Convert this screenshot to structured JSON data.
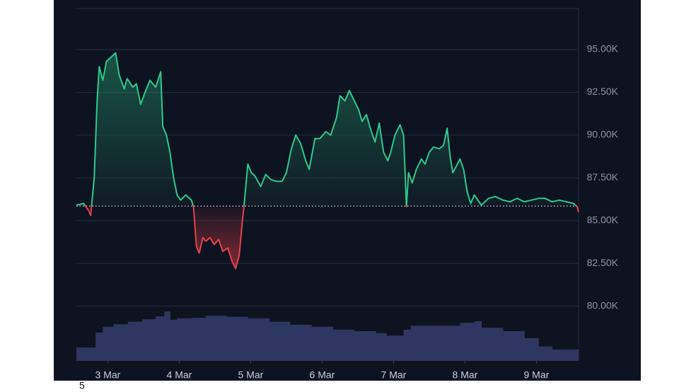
{
  "chart_data": {
    "type": "baseline-line",
    "series": [
      {
        "name": "price",
        "color": "#2ec98a",
        "below_color": "#e8414a",
        "x": [
          2.56,
          2.66,
          2.73,
          2.76,
          2.81,
          2.85,
          2.88,
          2.93,
          2.98,
          3.03,
          3.11,
          3.16,
          3.23,
          3.27,
          3.35,
          3.4,
          3.46,
          3.52,
          3.59,
          3.67,
          3.74,
          3.77,
          3.82,
          3.87,
          3.92,
          3.97,
          4.02,
          4.09,
          4.17,
          4.2,
          4.24,
          4.28,
          4.33,
          4.37,
          4.43,
          4.49,
          4.55,
          4.61,
          4.68,
          4.74,
          4.79,
          4.84,
          4.88,
          4.91,
          4.96,
          5.01,
          5.06,
          5.14,
          5.21,
          5.28,
          5.36,
          5.44,
          5.5,
          5.57,
          5.63,
          5.7,
          5.77,
          5.82,
          5.9,
          5.97,
          6.05,
          6.12,
          6.2,
          6.25,
          6.32,
          6.38,
          6.45,
          6.51,
          6.56,
          6.62,
          6.69,
          6.74,
          6.8,
          6.86,
          6.92,
          6.96,
          7.02,
          7.09,
          7.14,
          7.18,
          7.21,
          7.26,
          7.32,
          7.39,
          7.44,
          7.5,
          7.56,
          7.64,
          7.7,
          7.75,
          7.79,
          7.83,
          7.88,
          7.93,
          7.98,
          8.03,
          8.08,
          8.13,
          8.18,
          8.23,
          8.33,
          8.43,
          8.53,
          8.63,
          8.73,
          8.83,
          8.93,
          9.03,
          9.12,
          9.22,
          9.32,
          9.42,
          9.52,
          9.57,
          9.59
        ],
        "values": [
          85900,
          86000,
          85600,
          85300,
          87500,
          92000,
          94000,
          93200,
          94300,
          94500,
          94800,
          93500,
          92700,
          93300,
          92800,
          93000,
          91800,
          92500,
          93200,
          92800,
          93700,
          90500,
          90000,
          89000,
          87500,
          86500,
          86200,
          86500,
          86200,
          85800,
          83500,
          83100,
          84000,
          83800,
          84000,
          83600,
          83900,
          83200,
          83400,
          82600,
          82200,
          83000,
          84800,
          86000,
          88300,
          87800,
          87600,
          87000,
          87700,
          87400,
          87300,
          87300,
          87800,
          89200,
          90000,
          89500,
          88500,
          88000,
          89800,
          89800,
          90200,
          90000,
          91000,
          92300,
          92000,
          92600,
          92000,
          91500,
          90800,
          91200,
          90200,
          89600,
          90700,
          89000,
          88500,
          89000,
          90000,
          90600,
          90000,
          85800,
          87800,
          87200,
          88000,
          88600,
          88300,
          89000,
          89300,
          89200,
          89400,
          90400,
          88800,
          87800,
          88200,
          88600,
          88000,
          86700,
          86000,
          86500,
          86200,
          85900,
          86300,
          86400,
          86200,
          86100,
          86300,
          86100,
          86200,
          86300,
          86300,
          86100,
          86200,
          86100,
          86000,
          85800,
          85500
        ]
      }
    ],
    "baseline": 85850,
    "volume": {
      "color": "#2e3761",
      "ylim": [
        0,
        100
      ],
      "x": [
        2.56,
        2.78,
        2.83,
        2.93,
        3.08,
        3.28,
        3.48,
        3.67,
        3.79,
        3.87,
        3.97,
        4.17,
        4.37,
        4.66,
        4.96,
        5.26,
        5.55,
        5.85,
        6.15,
        6.45,
        6.75,
        6.9,
        7.14,
        7.24,
        7.64,
        7.93,
        8.13,
        8.23,
        8.53,
        8.83,
        9.03,
        9.22
      ],
      "values": [
        27,
        27,
        57,
        69,
        74,
        79,
        84,
        90,
        100,
        83,
        86,
        87,
        91,
        89,
        86,
        79,
        73,
        69,
        63,
        60,
        56,
        51,
        63,
        71,
        71,
        77,
        80,
        67,
        60,
        46,
        29,
        23
      ],
      "xend": 9.59
    },
    "xlim": [
      2.56,
      9.59
    ],
    "xticks": [
      {
        "value": 3,
        "label": "3 Mar"
      },
      {
        "value": 4,
        "label": "4 Mar"
      },
      {
        "value": 5,
        "label": "5 Mar"
      },
      {
        "value": 6,
        "label": "6 Mar"
      },
      {
        "value": 7,
        "label": "7 Mar"
      },
      {
        "value": 8,
        "label": "8 Mar"
      },
      {
        "value": 9,
        "label": "9 Mar"
      }
    ],
    "ylim": [
      76800,
      97400
    ],
    "yticks": [
      {
        "value": 80000,
        "label": "80.00K"
      },
      {
        "value": 82500,
        "label": "82.50K"
      },
      {
        "value": 85000,
        "label": "85.00K"
      },
      {
        "value": 87500,
        "label": "87.50K"
      },
      {
        "value": 90000,
        "label": "90.00K"
      },
      {
        "value": 92500,
        "label": "92.50K"
      },
      {
        "value": 95000,
        "label": "95.00K"
      }
    ],
    "grid": true,
    "footnote": "5"
  }
}
